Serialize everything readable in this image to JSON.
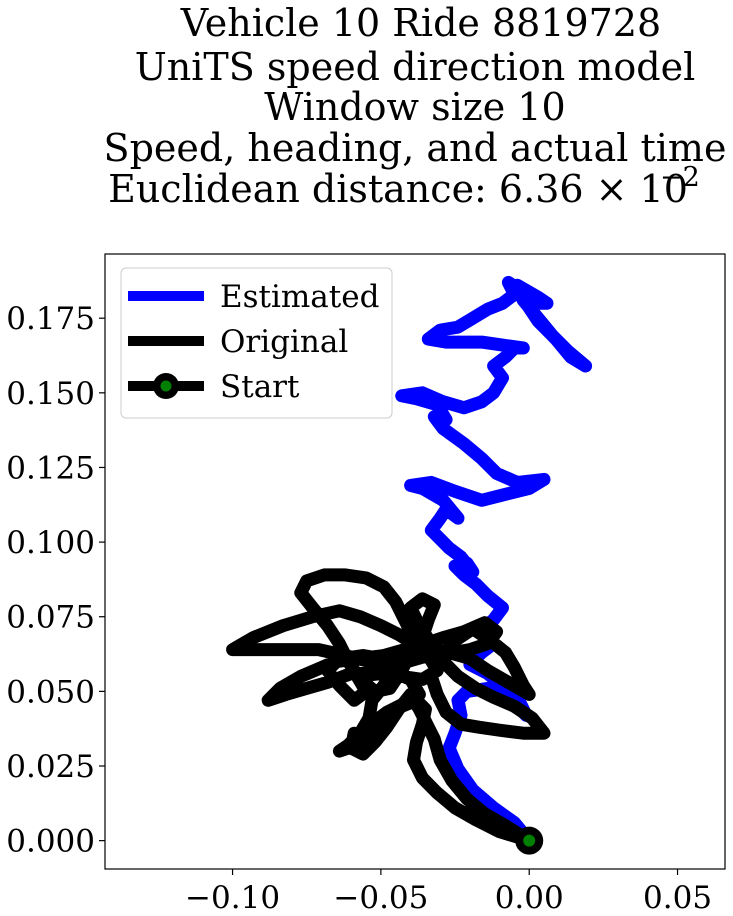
{
  "chart_data": {
    "type": "line",
    "title_lines": [
      "Vehicle 10 Ride 8819728",
      "UniTS speed direction model",
      "Window size 10",
      "Speed, heading, and actual time",
      "Euclidean distance: 6.36 × 10"
    ],
    "title_exponent": "−2",
    "xlabel": "",
    "ylabel": "",
    "xlim": [
      -0.143,
      0.066
    ],
    "ylim": [
      -0.0095,
      0.1965
    ],
    "xticks": [
      -0.1,
      -0.05,
      0.0,
      0.05
    ],
    "xtick_labels": [
      "−0.10",
      "−0.05",
      "0.00",
      "0.05"
    ],
    "yticks": [
      0.0,
      0.025,
      0.05,
      0.075,
      0.1,
      0.125,
      0.15,
      0.175
    ],
    "ytick_labels": [
      "0.000",
      "0.025",
      "0.050",
      "0.075",
      "0.100",
      "0.125",
      "0.150",
      "0.175"
    ],
    "grid": false,
    "legend_position": "top-left",
    "legend": [
      "Estimated",
      "Original",
      "Start"
    ],
    "series": [
      {
        "name": "Estimated",
        "color": "#0000ff",
        "points": [
          [
            0.0,
            0.0
          ],
          [
            -0.005,
            0.006
          ],
          [
            -0.012,
            0.011
          ],
          [
            -0.019,
            0.017
          ],
          [
            -0.024,
            0.024
          ],
          [
            -0.027,
            0.031
          ],
          [
            -0.025,
            0.036
          ],
          [
            -0.023,
            0.042
          ],
          [
            -0.024,
            0.047
          ],
          [
            -0.021,
            0.05
          ],
          [
            -0.014,
            0.051
          ],
          [
            -0.008,
            0.049
          ],
          [
            -0.004,
            0.045
          ],
          [
            -0.001,
            0.042
          ],
          [
            -0.003,
            0.046
          ],
          [
            -0.008,
            0.051
          ],
          [
            -0.014,
            0.056
          ],
          [
            -0.02,
            0.059
          ],
          [
            -0.016,
            0.063
          ],
          [
            -0.012,
            0.066
          ],
          [
            -0.017,
            0.07
          ],
          [
            -0.012,
            0.074
          ],
          [
            -0.009,
            0.078
          ],
          [
            -0.014,
            0.082
          ],
          [
            -0.018,
            0.086
          ],
          [
            -0.022,
            0.089
          ],
          [
            -0.025,
            0.092
          ],
          [
            -0.021,
            0.093
          ],
          [
            -0.019,
            0.09
          ],
          [
            -0.023,
            0.095
          ],
          [
            -0.027,
            0.098
          ],
          [
            -0.03,
            0.101
          ],
          [
            -0.033,
            0.104
          ],
          [
            -0.03,
            0.108
          ],
          [
            -0.028,
            0.111
          ],
          [
            -0.024,
            0.108
          ],
          [
            -0.029,
            0.114
          ],
          [
            -0.036,
            0.118
          ],
          [
            -0.04,
            0.119
          ],
          [
            -0.033,
            0.12
          ],
          [
            -0.025,
            0.117
          ],
          [
            -0.016,
            0.114
          ],
          [
            -0.008,
            0.116
          ],
          [
            0.0,
            0.118
          ],
          [
            0.005,
            0.121
          ],
          [
            -0.004,
            0.12
          ],
          [
            -0.011,
            0.123
          ],
          [
            -0.016,
            0.128
          ],
          [
            -0.022,
            0.133
          ],
          [
            -0.029,
            0.138
          ],
          [
            -0.032,
            0.142
          ],
          [
            -0.028,
            0.141
          ],
          [
            -0.031,
            0.146
          ],
          [
            -0.038,
            0.148
          ],
          [
            -0.043,
            0.149
          ],
          [
            -0.036,
            0.15
          ],
          [
            -0.029,
            0.147
          ],
          [
            -0.022,
            0.145
          ],
          [
            -0.016,
            0.147
          ],
          [
            -0.012,
            0.15
          ],
          [
            -0.009,
            0.155
          ],
          [
            -0.012,
            0.159
          ],
          [
            -0.008,
            0.162
          ],
          [
            -0.005,
            0.165
          ],
          [
            -0.002,
            0.165
          ],
          [
            -0.009,
            0.166
          ],
          [
            -0.016,
            0.167
          ],
          [
            -0.022,
            0.167
          ],
          [
            -0.028,
            0.167
          ],
          [
            -0.034,
            0.168
          ],
          [
            -0.03,
            0.171
          ],
          [
            -0.024,
            0.172
          ],
          [
            -0.019,
            0.175
          ],
          [
            -0.014,
            0.178
          ],
          [
            -0.009,
            0.18
          ],
          [
            -0.005,
            0.183
          ],
          [
            -0.007,
            0.187
          ],
          [
            -0.004,
            0.185
          ],
          [
            -0.002,
            0.181
          ],
          [
            0.003,
            0.175
          ],
          [
            0.008,
            0.169
          ],
          [
            0.013,
            0.164
          ],
          [
            0.019,
            0.159
          ],
          [
            0.014,
            0.162
          ],
          [
            0.009,
            0.168
          ],
          [
            0.003,
            0.174
          ],
          [
            -0.001,
            0.18
          ],
          [
            0.006,
            0.18
          ],
          [
            0.003,
            0.182
          ],
          [
            -0.004,
            0.186
          ]
        ]
      },
      {
        "name": "Original",
        "color": "#000000",
        "points": [
          [
            0.0,
            0.0
          ],
          [
            -0.008,
            0.005
          ],
          [
            -0.015,
            0.009
          ],
          [
            -0.021,
            0.014
          ],
          [
            -0.026,
            0.02
          ],
          [
            -0.03,
            0.027
          ],
          [
            -0.032,
            0.034
          ],
          [
            -0.034,
            0.038
          ],
          [
            -0.037,
            0.044
          ],
          [
            -0.04,
            0.049
          ],
          [
            -0.044,
            0.044
          ],
          [
            -0.048,
            0.038
          ],
          [
            -0.052,
            0.033
          ],
          [
            -0.056,
            0.029
          ],
          [
            -0.06,
            0.031
          ],
          [
            -0.059,
            0.036
          ],
          [
            -0.054,
            0.035
          ],
          [
            -0.052,
            0.04
          ],
          [
            -0.048,
            0.043
          ],
          [
            -0.042,
            0.046
          ],
          [
            -0.037,
            0.049
          ],
          [
            -0.04,
            0.054
          ],
          [
            -0.047,
            0.057
          ],
          [
            -0.054,
            0.06
          ],
          [
            -0.062,
            0.062
          ],
          [
            -0.071,
            0.064
          ],
          [
            -0.081,
            0.064
          ],
          [
            -0.091,
            0.064
          ],
          [
            -0.1,
            0.064
          ],
          [
            -0.093,
            0.068
          ],
          [
            -0.083,
            0.072
          ],
          [
            -0.073,
            0.075
          ],
          [
            -0.064,
            0.077
          ],
          [
            -0.057,
            0.075
          ],
          [
            -0.05,
            0.072
          ],
          [
            -0.044,
            0.069
          ],
          [
            -0.039,
            0.066
          ],
          [
            -0.033,
            0.064
          ],
          [
            -0.026,
            0.063
          ],
          [
            -0.02,
            0.064
          ],
          [
            -0.014,
            0.066
          ],
          [
            -0.011,
            0.07
          ],
          [
            -0.015,
            0.073
          ],
          [
            -0.022,
            0.07
          ],
          [
            -0.029,
            0.068
          ],
          [
            -0.035,
            0.066
          ],
          [
            -0.042,
            0.064
          ],
          [
            -0.049,
            0.062
          ],
          [
            -0.057,
            0.061
          ],
          [
            -0.065,
            0.06
          ],
          [
            -0.068,
            0.057
          ],
          [
            -0.064,
            0.052
          ],
          [
            -0.059,
            0.047
          ],
          [
            -0.055,
            0.05
          ],
          [
            -0.058,
            0.055
          ],
          [
            -0.05,
            0.056
          ],
          [
            -0.043,
            0.055
          ],
          [
            -0.036,
            0.054
          ],
          [
            -0.031,
            0.057
          ],
          [
            -0.034,
            0.062
          ],
          [
            -0.039,
            0.068
          ],
          [
            -0.042,
            0.074
          ],
          [
            -0.045,
            0.08
          ],
          [
            -0.049,
            0.085
          ],
          [
            -0.055,
            0.088
          ],
          [
            -0.062,
            0.089
          ],
          [
            -0.069,
            0.089
          ],
          [
            -0.075,
            0.087
          ],
          [
            -0.077,
            0.083
          ],
          [
            -0.073,
            0.078
          ],
          [
            -0.068,
            0.072
          ],
          [
            -0.064,
            0.066
          ],
          [
            -0.061,
            0.06
          ],
          [
            -0.057,
            0.054
          ],
          [
            -0.052,
            0.05
          ],
          [
            -0.047,
            0.051
          ],
          [
            -0.043,
            0.057
          ],
          [
            -0.04,
            0.063
          ],
          [
            -0.036,
            0.068
          ],
          [
            -0.034,
            0.074
          ],
          [
            -0.032,
            0.079
          ],
          [
            -0.036,
            0.081
          ],
          [
            -0.04,
            0.078
          ],
          [
            -0.037,
            0.072
          ],
          [
            -0.033,
            0.066
          ],
          [
            -0.029,
            0.06
          ],
          [
            -0.024,
            0.055
          ],
          [
            -0.018,
            0.051
          ],
          [
            -0.012,
            0.048
          ],
          [
            -0.005,
            0.045
          ],
          [
            0.001,
            0.041
          ],
          [
            0.005,
            0.036
          ],
          [
            -0.002,
            0.036
          ],
          [
            -0.01,
            0.037
          ],
          [
            -0.017,
            0.038
          ],
          [
            -0.023,
            0.039
          ],
          [
            -0.028,
            0.043
          ],
          [
            -0.031,
            0.049
          ],
          [
            -0.033,
            0.055
          ],
          [
            -0.03,
            0.061
          ],
          [
            -0.025,
            0.067
          ],
          [
            -0.019,
            0.071
          ],
          [
            -0.013,
            0.067
          ],
          [
            -0.008,
            0.063
          ],
          [
            -0.005,
            0.058
          ],
          [
            -0.002,
            0.052
          ],
          [
            0.0,
            0.049
          ],
          [
            -0.007,
            0.053
          ],
          [
            -0.014,
            0.057
          ],
          [
            -0.02,
            0.061
          ],
          [
            -0.027,
            0.063
          ],
          [
            -0.034,
            0.062
          ],
          [
            -0.041,
            0.06
          ],
          [
            -0.047,
            0.058
          ],
          [
            -0.053,
            0.056
          ],
          [
            -0.06,
            0.056
          ],
          [
            -0.068,
            0.053
          ],
          [
            -0.075,
            0.051
          ],
          [
            -0.082,
            0.049
          ],
          [
            -0.088,
            0.047
          ],
          [
            -0.084,
            0.051
          ],
          [
            -0.077,
            0.055
          ],
          [
            -0.07,
            0.058
          ],
          [
            -0.063,
            0.061
          ],
          [
            -0.056,
            0.062
          ],
          [
            -0.05,
            0.061
          ],
          [
            -0.046,
            0.057
          ],
          [
            -0.049,
            0.052
          ],
          [
            -0.053,
            0.047
          ],
          [
            -0.054,
            0.041
          ],
          [
            -0.057,
            0.036
          ],
          [
            -0.061,
            0.032
          ],
          [
            -0.064,
            0.03
          ],
          [
            -0.061,
            0.031
          ],
          [
            -0.057,
            0.034
          ],
          [
            -0.053,
            0.038
          ],
          [
            -0.048,
            0.042
          ],
          [
            -0.043,
            0.045
          ],
          [
            -0.038,
            0.047
          ],
          [
            -0.035,
            0.044
          ],
          [
            -0.036,
            0.039
          ],
          [
            -0.038,
            0.033
          ],
          [
            -0.039,
            0.027
          ],
          [
            -0.036,
            0.021
          ],
          [
            -0.031,
            0.016
          ],
          [
            -0.025,
            0.011
          ],
          [
            -0.018,
            0.007
          ],
          [
            -0.01,
            0.003
          ],
          [
            0.0,
            0.0
          ]
        ]
      }
    ],
    "start_point": [
      0.0,
      0.0
    ],
    "start_marker_color": "#008000"
  }
}
